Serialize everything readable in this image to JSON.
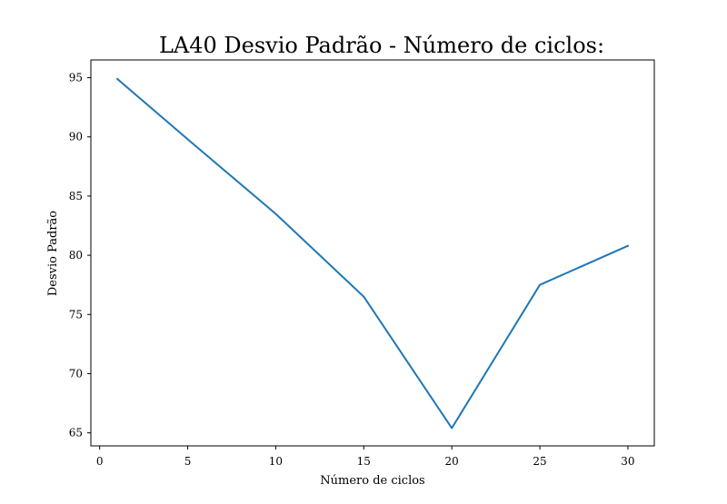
{
  "chart_data": {
    "type": "line",
    "title": "LA40 Desvio Padrão - Número de ciclos:",
    "xlabel": "Número de ciclos",
    "ylabel": "Desvio Padrão",
    "xlim": [
      -0.5,
      31.5
    ],
    "ylim": [
      63.9,
      96.5
    ],
    "xticks": [
      0,
      5,
      10,
      15,
      20,
      25,
      30
    ],
    "yticks": [
      65,
      70,
      75,
      80,
      85,
      90,
      95
    ],
    "grid": false,
    "series": [
      {
        "x": [
          1,
          5,
          10,
          15,
          20,
          25,
          30
        ],
        "y": [
          94.9,
          89.8,
          83.5,
          76.5,
          65.4,
          77.5,
          80.8
        ],
        "color": "#1f77b4"
      }
    ]
  }
}
